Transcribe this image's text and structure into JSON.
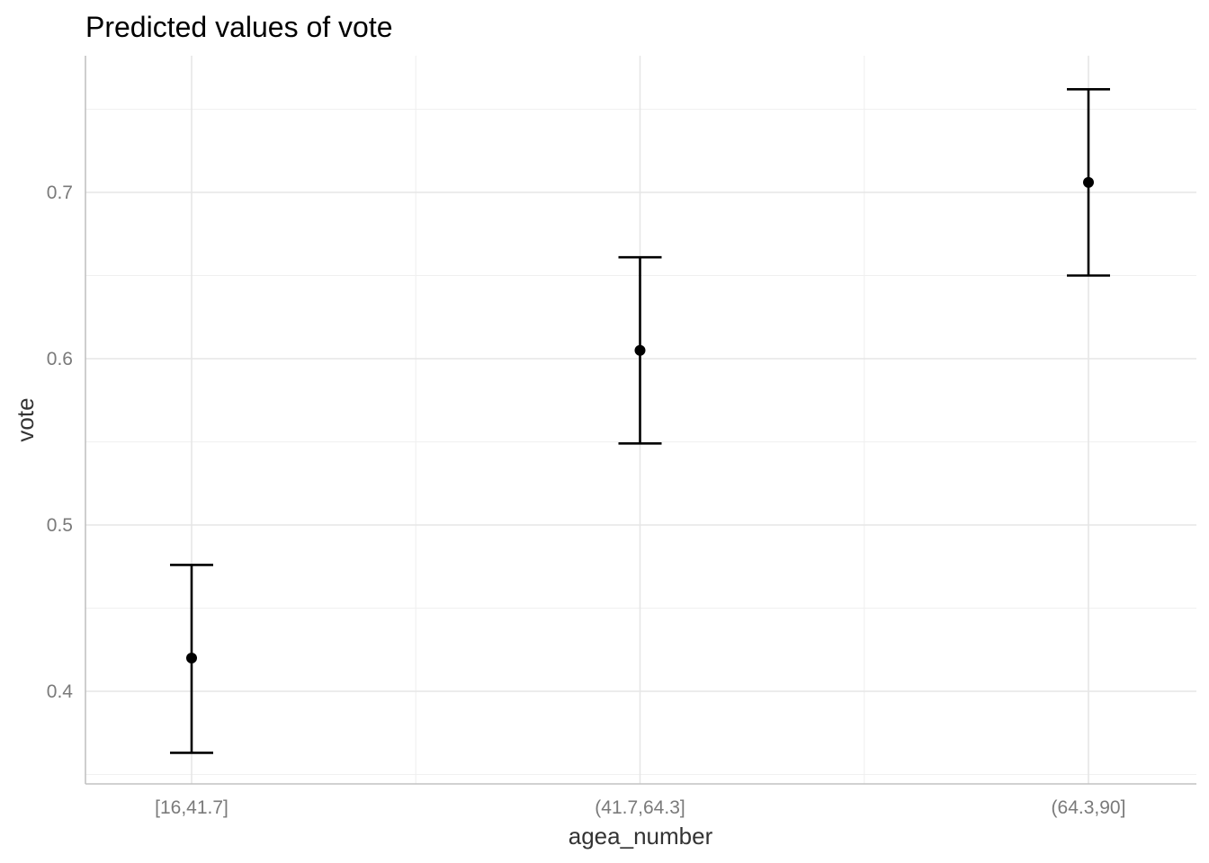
{
  "chart_data": {
    "type": "scatter",
    "title": "Predicted values of vote",
    "xlabel": "agea_number",
    "ylabel": "vote",
    "categories": [
      "[16,41.7]",
      "(41.7,64.3]",
      "(64.3,90]"
    ],
    "values": [
      0.42,
      0.605,
      0.706
    ],
    "ci_low": [
      0.363,
      0.549,
      0.65
    ],
    "ci_high": [
      0.476,
      0.661,
      0.762
    ],
    "ylim": [
      0.345,
      0.775
    ],
    "yticks": [
      0.4,
      0.5,
      0.6,
      0.7
    ],
    "ytick_labels": [
      "0.4",
      "0.5",
      "0.6",
      "0.7"
    ],
    "grid": true,
    "point_color": "#000000"
  }
}
